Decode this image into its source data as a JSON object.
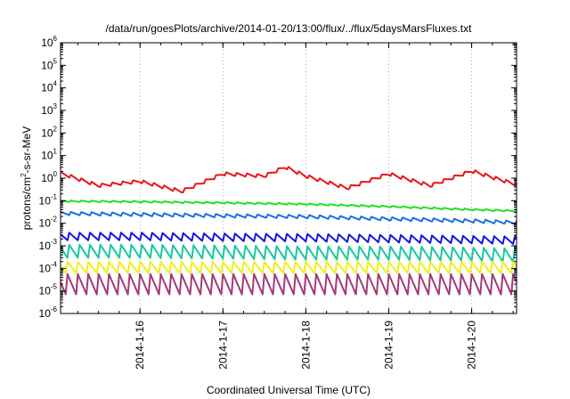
{
  "chart_data": {
    "type": "line",
    "title": "/data/run/goesPlots/archive/2014-01-20/13:00/flux/../flux/5daysMarsFluxes.txt",
    "xlabel": "Coordinated Universal Time (UTC)",
    "ylabel_base": "protons/cm",
    "ylabel_sup": "2",
    "ylabel_rest": "-s-sr-MeV",
    "y_scale": "log",
    "ylim_exp": [
      -6,
      6
    ],
    "y_ticks": [
      {
        "base": "10",
        "exp": "-6"
      },
      {
        "base": "10",
        "exp": "-5"
      },
      {
        "base": "10",
        "exp": "-4"
      },
      {
        "base": "10",
        "exp": "-3"
      },
      {
        "base": "10",
        "exp": "-2"
      },
      {
        "base": "10",
        "exp": "-1"
      },
      {
        "base": "10",
        "exp": "0"
      },
      {
        "base": "10",
        "exp": "1"
      },
      {
        "base": "10",
        "exp": "2"
      },
      {
        "base": "10",
        "exp": "3"
      },
      {
        "base": "10",
        "exp": "4"
      },
      {
        "base": "10",
        "exp": "5"
      },
      {
        "base": "10",
        "exp": "6"
      }
    ],
    "xlim": [
      "2014-01-15T01:00",
      "2014-01-20T13:00"
    ],
    "x_ticks": [
      "2014-1-16",
      "2014-1-17",
      "2014-1-18",
      "2014-1-19",
      "2014-1-20"
    ],
    "grid": true,
    "series": [
      {
        "color": "#e8141b",
        "x": [
          "2014-01-15T01:00",
          "2014-01-15T12:00",
          "2014-01-16T00:00",
          "2014-01-16T12:00",
          "2014-01-17T00:00",
          "2014-01-17T12:00",
          "2014-01-17T18:00",
          "2014-01-18T00:00",
          "2014-01-18T12:00",
          "2014-01-19T00:00",
          "2014-01-19T12:00",
          "2014-01-20T00:00",
          "2014-01-20T13:00"
        ],
        "y": [
          1.6,
          0.45,
          0.7,
          0.25,
          1.5,
          1.2,
          3.0,
          1.2,
          0.35,
          1.5,
          0.45,
          2.0,
          0.5
        ],
        "amplitude": 1.5,
        "spikes_per_day": 8
      },
      {
        "color": "#22e01f",
        "x": [
          "2014-01-15T01:00",
          "2014-01-16T00:00",
          "2014-01-17T00:00",
          "2014-01-18T00:00",
          "2014-01-19T00:00",
          "2014-01-20T00:00",
          "2014-01-20T13:00"
        ],
        "y": [
          0.095,
          0.09,
          0.08,
          0.07,
          0.055,
          0.04,
          0.035
        ],
        "amplitude": 1.2,
        "spikes_per_day": 8
      },
      {
        "color": "#1a6ee6",
        "x": [
          "2014-01-15T01:00",
          "2014-01-16T00:00",
          "2014-01-17T00:00",
          "2014-01-18T00:00",
          "2014-01-19T00:00",
          "2014-01-20T00:00",
          "2014-01-20T13:00"
        ],
        "y": [
          0.028,
          0.025,
          0.022,
          0.02,
          0.016,
          0.013,
          0.011
        ],
        "amplitude": 1.5,
        "spikes_per_day": 8
      },
      {
        "color": "#1416e0",
        "x": [
          "2014-01-15T01:00",
          "2014-01-16T00:00",
          "2014-01-17T00:00",
          "2014-01-18T00:00",
          "2014-01-19T00:00",
          "2014-01-20T00:00",
          "2014-01-20T13:00"
        ],
        "y": [
          0.0025,
          0.0025,
          0.0023,
          0.0022,
          0.002,
          0.0018,
          0.0017
        ],
        "amplitude": 2.5,
        "spikes_per_day": 8
      },
      {
        "color": "#18c8a0",
        "x": [
          "2014-01-15T01:00",
          "2014-01-16T00:00",
          "2014-01-17T00:00",
          "2014-01-18T00:00",
          "2014-01-19T00:00",
          "2014-01-20T00:00",
          "2014-01-20T13:00"
        ],
        "y": [
          0.0006,
          0.0006,
          0.00055,
          0.0005,
          0.0005,
          0.00045,
          0.0004
        ],
        "amplitude": 5,
        "spikes_per_day": 8
      },
      {
        "color": "#f0f01a",
        "x": [
          "2014-01-15T01:00",
          "2014-01-16T00:00",
          "2014-01-17T00:00",
          "2014-01-18T00:00",
          "2014-01-19T00:00",
          "2014-01-20T00:00",
          "2014-01-20T13:00"
        ],
        "y": [
          0.0001,
          0.0001,
          0.0001,
          0.0001,
          0.0001,
          0.0001,
          0.0001
        ],
        "amplitude": 4,
        "spikes_per_day": 8
      },
      {
        "color": "#a03a7a",
        "x": [
          "2014-01-15T01:00",
          "2014-01-16T00:00",
          "2014-01-17T00:00",
          "2014-01-18T00:00",
          "2014-01-19T00:00",
          "2014-01-20T00:00",
          "2014-01-20T13:00"
        ],
        "y": [
          2e-05,
          2e-05,
          2e-05,
          2e-05,
          2e-05,
          2e-05,
          2e-05
        ],
        "amplitude": 12,
        "spikes_per_day": 8
      }
    ]
  }
}
